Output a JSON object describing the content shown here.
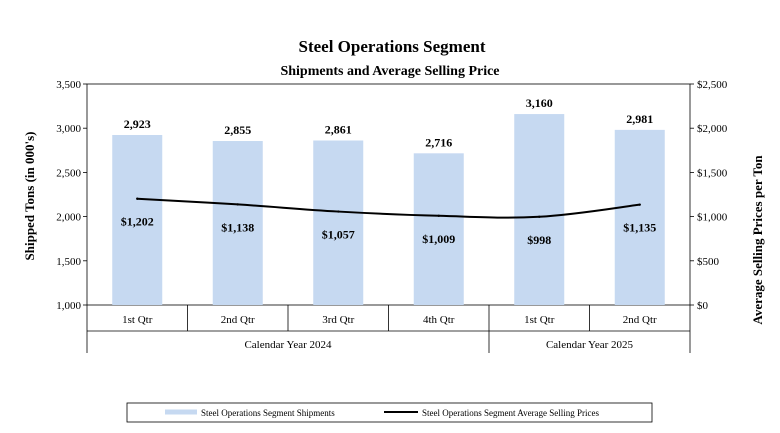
{
  "chart_data": {
    "type": "bar",
    "title": "Steel Operations Segment",
    "subtitle": "Shipments and Average Selling Price",
    "categories": [
      "1st Qtr",
      "2nd Qtr",
      "3rd Qtr",
      "4th Qtr",
      "1st Qtr",
      "2nd Qtr"
    ],
    "groups": [
      {
        "label": "Calendar Year 2024",
        "span": 4
      },
      {
        "label": "Calendar Year 2025",
        "span": 2
      }
    ],
    "series": [
      {
        "name": "Steel Operations Segment Shipments",
        "type": "bar",
        "axis": "left",
        "color": "#c6d9f1",
        "values": [
          2923,
          2855,
          2861,
          2716,
          3160,
          2981
        ],
        "labels": [
          "2,923",
          "2,855",
          "2,861",
          "2,716",
          "3,160",
          "2,981"
        ]
      },
      {
        "name": "Steel Operations Segment Average Selling Prices",
        "type": "line",
        "axis": "right",
        "color": "#000000",
        "values": [
          1202,
          1138,
          1057,
          1009,
          998,
          1135
        ],
        "labels": [
          "$1,202",
          "$1,138",
          "$1,057",
          "$1,009",
          "$998",
          "$1,135"
        ]
      }
    ],
    "ylabel": "Shipped Tons (in 000's)",
    "y2label": "Average Selling Prices per Ton",
    "ylim": [
      1000,
      3500
    ],
    "y2lim": [
      0,
      2500
    ],
    "yticks": [
      "1,000",
      "1,500",
      "2,000",
      "2,500",
      "3,000",
      "3,500"
    ],
    "y2ticks": [
      "$0",
      "$500",
      "$1,000",
      "$1,500",
      "$2,000",
      "$2,500"
    ],
    "legend_position": "bottom"
  }
}
